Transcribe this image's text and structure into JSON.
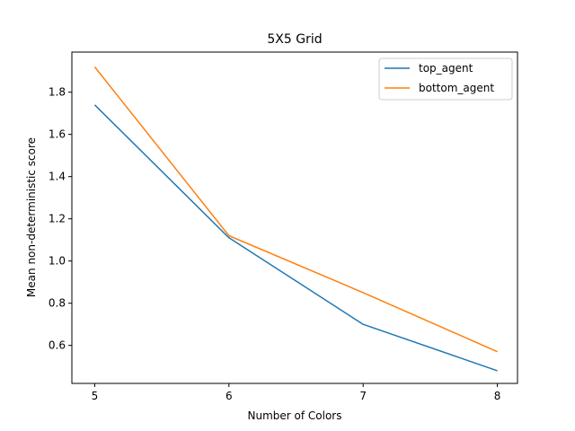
{
  "chart_data": {
    "type": "line",
    "title": "5X5 Grid",
    "xlabel": "Number of Colors",
    "ylabel": "Mean non-deterministic score",
    "x": [
      5,
      6,
      7,
      8
    ],
    "xticks": [
      "5",
      "6",
      "7",
      "8"
    ],
    "yticks": [
      "0.6",
      "0.8",
      "1.0",
      "1.2",
      "1.4",
      "1.6",
      "1.8"
    ],
    "xlim": [
      4.83,
      8.15
    ],
    "ylim": [
      0.42,
      1.99
    ],
    "grid": false,
    "legend_position": "top-right",
    "series": [
      {
        "name": "top_agent",
        "color": "#1f77b4",
        "values": [
          1.74,
          1.11,
          0.7,
          0.48
        ]
      },
      {
        "name": "bottom_agent",
        "color": "#ff7f0e",
        "values": [
          1.92,
          1.12,
          0.85,
          0.57
        ]
      }
    ]
  }
}
